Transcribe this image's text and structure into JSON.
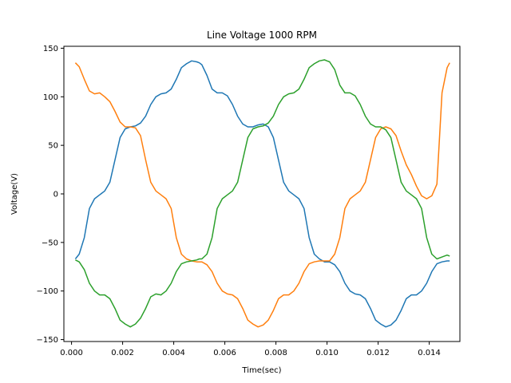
{
  "chart_data": {
    "type": "line",
    "title": "Line Voltage 1000 RPM",
    "xlabel": "Time(sec)",
    "ylabel": "Voltage(V)",
    "xlim": [
      -0.0003,
      0.0152
    ],
    "ylim": [
      -152,
      152
    ],
    "grid": false,
    "x_ticks": [
      0.0,
      0.002,
      0.004,
      0.006,
      0.008,
      0.01,
      0.012,
      0.014
    ],
    "x_tick_labels": [
      "0.000",
      "0.002",
      "0.004",
      "0.006",
      "0.008",
      "0.010",
      "0.012",
      "0.014"
    ],
    "y_ticks": [
      -150,
      -100,
      -50,
      0,
      50,
      100,
      150
    ],
    "y_tick_labels": [
      "−150",
      "−100",
      "−50",
      "0",
      "50",
      "100",
      "150"
    ],
    "x": [
      0.00015,
      0.0003,
      0.0005,
      0.0007,
      0.0009,
      0.0011,
      0.0013,
      0.0015,
      0.0017,
      0.0019,
      0.0021,
      0.0023,
      0.0025,
      0.0027,
      0.0029,
      0.0031,
      0.0033,
      0.0035,
      0.0037,
      0.0039,
      0.0041,
      0.0043,
      0.0045,
      0.0047,
      0.0049,
      0.005,
      0.0051,
      0.0053,
      0.0055,
      0.0057,
      0.0059,
      0.0061,
      0.0063,
      0.0065,
      0.0067,
      0.0069,
      0.0071,
      0.0073,
      0.0075,
      0.0077,
      0.0079,
      0.0081,
      0.0083,
      0.0085,
      0.0087,
      0.0089,
      0.0091,
      0.0093,
      0.0095,
      0.0097,
      0.0099,
      0.01,
      0.0101,
      0.0103,
      0.0105,
      0.0107,
      0.0109,
      0.0111,
      0.0113,
      0.0115,
      0.0117,
      0.0119,
      0.0121,
      0.0123,
      0.0125,
      0.0127,
      0.0129,
      0.0131,
      0.0133,
      0.0135,
      0.0137,
      0.0139,
      0.0141,
      0.0143,
      0.0145,
      0.0147,
      0.0148
    ],
    "series": [
      {
        "color": "#1f77b4",
        "values": [
          -67,
          -62,
          -45,
          -15,
          -5,
          -1,
          3,
          12,
          35,
          58,
          67,
          69,
          70,
          73,
          80,
          92,
          100,
          103,
          104,
          108,
          118,
          130,
          134,
          137,
          136,
          135,
          133,
          122,
          108,
          104,
          104,
          101,
          92,
          80,
          72,
          69,
          69,
          71,
          72,
          69,
          58,
          35,
          12,
          3,
          -1,
          -5,
          -15,
          -45,
          -62,
          -67,
          -70,
          -70,
          -70,
          -73,
          -80,
          -92,
          -100,
          -103,
          -104,
          -108,
          -118,
          -130,
          -134,
          -137,
          -135,
          -130,
          -120,
          -108,
          -104,
          -104,
          -100,
          -92,
          -80,
          -72,
          -70,
          -69,
          -69
        ]
      },
      {
        "color": "#ff7f0e",
        "values": [
          135,
          131,
          118,
          106,
          103,
          104,
          100,
          95,
          85,
          74,
          69,
          69,
          68,
          60,
          35,
          12,
          3,
          -1,
          -5,
          -15,
          -45,
          -62,
          -67,
          -69,
          -70,
          -70,
          -70,
          -73,
          -80,
          -92,
          -100,
          -103,
          -104,
          -108,
          -118,
          -130,
          -134,
          -137,
          -135,
          -130,
          -120,
          -108,
          -104,
          -104,
          -100,
          -92,
          -80,
          -72,
          -70,
          -69,
          -69,
          -69,
          -69,
          -62,
          -45,
          -15,
          -5,
          -1,
          3,
          12,
          35,
          58,
          67,
          69,
          67,
          60,
          44,
          30,
          20,
          8,
          -2,
          -5,
          -2,
          10,
          104,
          130,
          135
        ]
      },
      {
        "color": "#2ca02c",
        "values": [
          -68,
          -70,
          -78,
          -92,
          -100,
          -104,
          -104,
          -108,
          -118,
          -130,
          -134,
          -137,
          -134,
          -128,
          -118,
          -106,
          -103,
          -104,
          -100,
          -92,
          -80,
          -72,
          -70,
          -69,
          -68,
          -67,
          -67,
          -62,
          -45,
          -15,
          -5,
          -1,
          3,
          12,
          35,
          58,
          67,
          69,
          70,
          73,
          80,
          92,
          100,
          103,
          104,
          108,
          118,
          130,
          134,
          137,
          138,
          137,
          136,
          128,
          112,
          104,
          104,
          101,
          92,
          80,
          72,
          69,
          69,
          66,
          58,
          35,
          12,
          3,
          -1,
          -5,
          -15,
          -45,
          -62,
          -67,
          -65,
          -63,
          -64
        ]
      }
    ]
  }
}
